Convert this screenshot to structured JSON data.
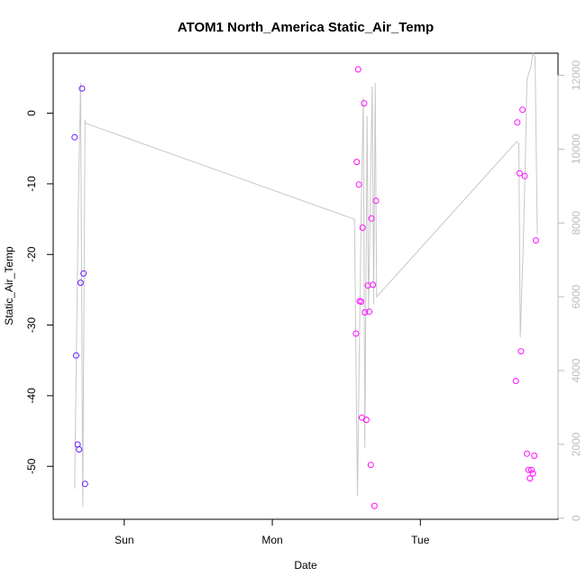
{
  "chart_data": {
    "type": "scatter",
    "title": "ATOM1 North_America Static_Air_Temp",
    "xlabel": "Date",
    "ylabel": "Static_Air_Temp",
    "xlim": [
      -0.48,
      2.93
    ],
    "ylim": [
      -57.5,
      8.5
    ],
    "y2lim": [
      -30,
      12600
    ],
    "x_ticks": [
      {
        "label": "Sun",
        "value": 0
      },
      {
        "label": "Mon",
        "value": 1
      },
      {
        "label": "Tue",
        "value": 2
      }
    ],
    "y_ticks": [
      0,
      -10,
      -20,
      -30,
      -40,
      -50
    ],
    "y2_ticks": [
      0,
      2000,
      4000,
      6000,
      8000,
      10000,
      12000
    ],
    "y2_color": "#bdbdbd",
    "x_unit": "days, Sun 00:00 = 0",
    "series": [
      {
        "color": "#6a1bff",
        "points": [
          [
            -0.335,
            -3.4
          ],
          [
            -0.325,
            -34.3
          ],
          [
            -0.315,
            -46.9
          ],
          [
            -0.305,
            -47.6
          ],
          [
            -0.295,
            -24.0
          ],
          [
            -0.285,
            3.5
          ],
          [
            -0.275,
            -22.7
          ],
          [
            -0.265,
            -52.5
          ]
        ]
      },
      {
        "color": "#ff10ff",
        "points": [
          [
            1.565,
            -31.2
          ],
          [
            1.57,
            -6.9
          ],
          [
            1.58,
            6.2
          ],
          [
            1.585,
            -10.1
          ],
          [
            1.59,
            -26.6
          ],
          [
            1.6,
            -26.7
          ],
          [
            1.605,
            -43.1
          ],
          [
            1.61,
            -16.2
          ],
          [
            1.62,
            1.4
          ],
          [
            1.625,
            -28.2
          ],
          [
            1.635,
            -43.4
          ],
          [
            1.645,
            -24.4
          ],
          [
            1.655,
            -28.1
          ],
          [
            1.665,
            -49.8
          ],
          [
            1.67,
            -14.9
          ],
          [
            1.68,
            -24.3
          ],
          [
            1.69,
            -55.6
          ],
          [
            1.7,
            -12.4
          ],
          [
            2.645,
            -37.9
          ],
          [
            2.655,
            -1.3
          ],
          [
            2.67,
            -8.5
          ],
          [
            2.68,
            -33.7
          ],
          [
            2.69,
            0.5
          ],
          [
            2.705,
            -8.9
          ],
          [
            2.72,
            -48.2
          ],
          [
            2.73,
            -50.5
          ],
          [
            2.74,
            -51.7
          ],
          [
            2.75,
            -50.5
          ],
          [
            2.76,
            -51.0
          ],
          [
            2.77,
            -48.5
          ],
          [
            2.78,
            -18.0
          ]
        ]
      }
    ],
    "line_series": {
      "color": "#c8c8c8",
      "axis": "right",
      "points": [
        [
          -0.335,
          800
        ],
        [
          -0.31,
          8500
        ],
        [
          -0.295,
          11800
        ],
        [
          -0.28,
          300
        ],
        [
          -0.265,
          10800
        ],
        [
          -0.26,
          10700
        ],
        [
          1.555,
          8100
        ],
        [
          1.575,
          600
        ],
        [
          1.6,
          8200
        ],
        [
          1.615,
          11400
        ],
        [
          1.625,
          1900
        ],
        [
          1.64,
          10900
        ],
        [
          1.65,
          5600
        ],
        [
          1.665,
          9500
        ],
        [
          1.675,
          11700
        ],
        [
          1.685,
          5800
        ],
        [
          1.695,
          11800
        ],
        [
          1.705,
          6000
        ],
        [
          2.65,
          10200
        ],
        [
          2.665,
          10150
        ],
        [
          2.675,
          4900
        ],
        [
          2.695,
          7400
        ],
        [
          2.71,
          9900
        ],
        [
          2.72,
          11900
        ],
        [
          2.745,
          12200
        ],
        [
          2.76,
          12600
        ],
        [
          2.775,
          12500
        ],
        [
          2.79,
          7700
        ]
      ]
    },
    "grid": false,
    "legend": "none"
  }
}
